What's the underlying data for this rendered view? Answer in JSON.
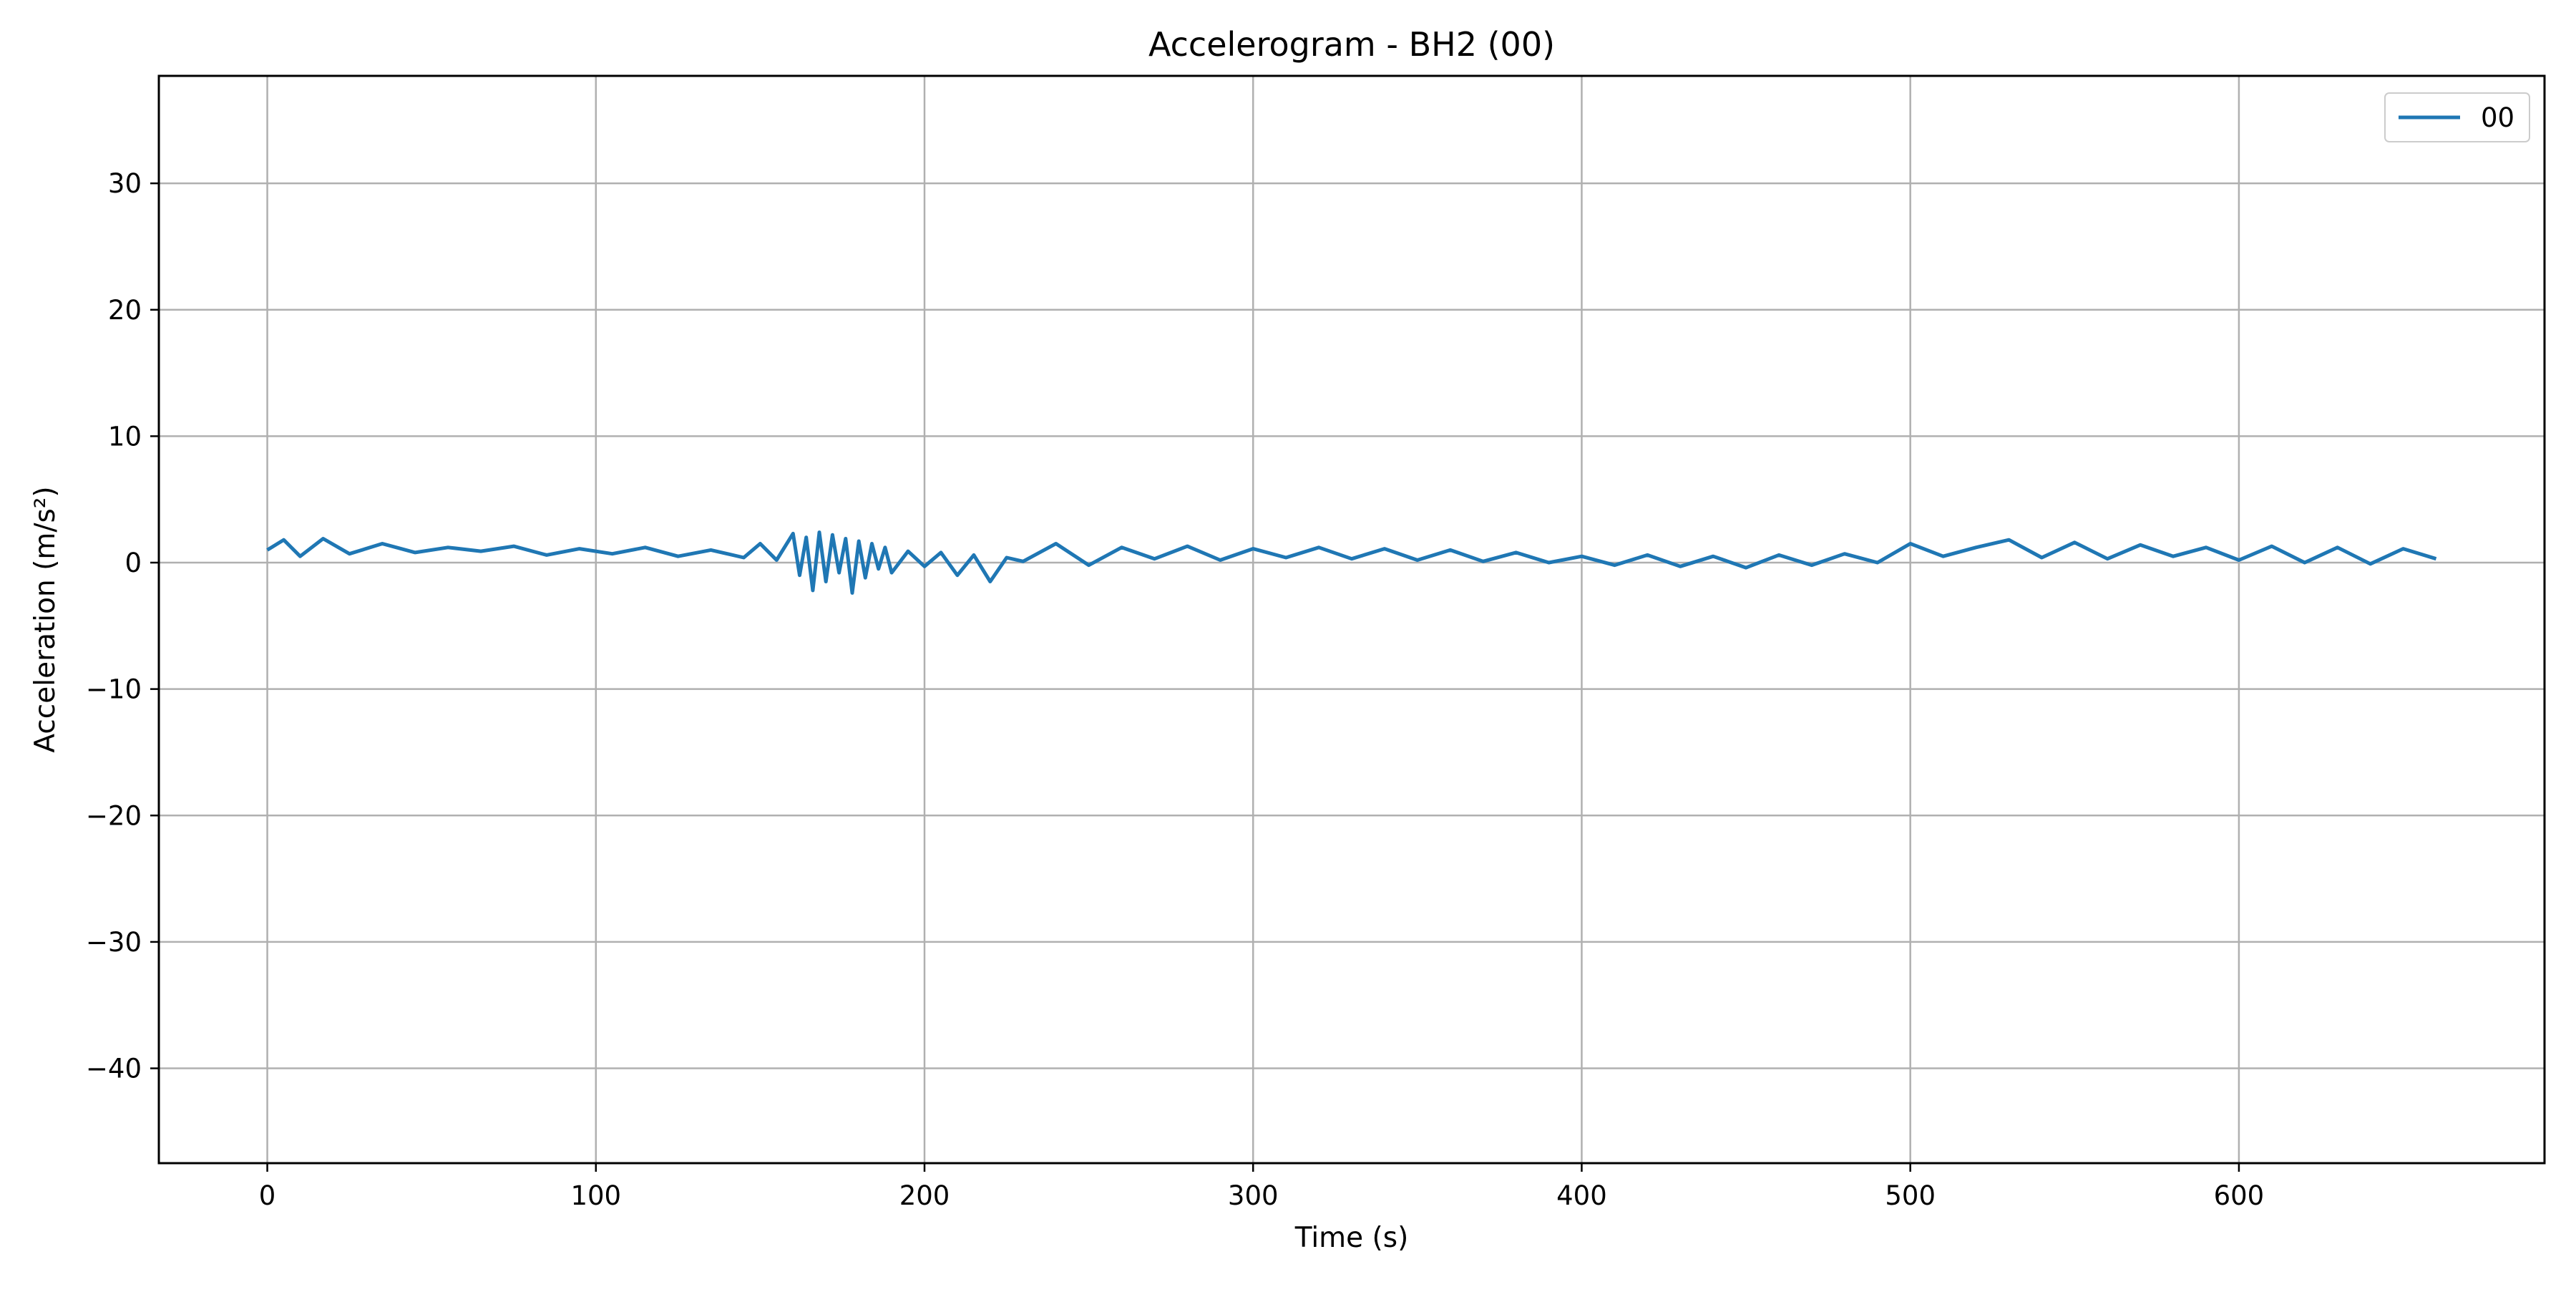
{
  "chart_data": {
    "type": "line",
    "title": "Accelerogram - BH2 (00)",
    "xlabel": "Time (s)",
    "ylabel": "Acceleration (m/s²)",
    "xlim": [
      -33,
      693
    ],
    "ylim": [
      -47.5,
      38.5
    ],
    "xticks": [
      0,
      100,
      200,
      300,
      400,
      500,
      600
    ],
    "yticks": [
      -40,
      -30,
      -20,
      -10,
      0,
      10,
      20,
      30
    ],
    "grid": true,
    "legend_position": "top-right",
    "colors": {
      "series": "#1f77b4",
      "grid": "#b0b0b0",
      "frame": "#000000"
    },
    "series": [
      {
        "name": "00",
        "x": [
          0,
          5,
          10,
          17,
          25,
          35,
          45,
          55,
          65,
          75,
          85,
          95,
          105,
          115,
          125,
          135,
          145,
          150,
          155,
          160,
          162,
          164,
          166,
          168,
          170,
          172,
          174,
          176,
          178,
          180,
          182,
          184,
          186,
          188,
          190,
          195,
          200,
          205,
          210,
          215,
          220,
          225,
          230,
          240,
          250,
          260,
          270,
          280,
          290,
          300,
          310,
          320,
          330,
          340,
          350,
          360,
          370,
          380,
          390,
          400,
          410,
          420,
          430,
          440,
          450,
          460,
          470,
          480,
          490,
          500,
          510,
          520,
          530,
          540,
          550,
          560,
          570,
          580,
          590,
          600,
          610,
          620,
          630,
          640,
          650,
          660
        ],
        "y": [
          1.0,
          1.8,
          0.5,
          1.9,
          0.7,
          1.5,
          0.8,
          1.2,
          0.9,
          1.3,
          0.6,
          1.1,
          0.7,
          1.2,
          0.5,
          1.0,
          0.4,
          1.5,
          0.2,
          2.3,
          -1.0,
          2.0,
          -2.2,
          2.4,
          -1.5,
          2.2,
          -0.8,
          1.9,
          -2.4,
          1.7,
          -1.2,
          1.5,
          -0.5,
          1.2,
          -0.8,
          0.9,
          -0.3,
          0.8,
          -1.0,
          0.6,
          -1.5,
          0.4,
          0.1,
          1.5,
          -0.2,
          1.2,
          0.3,
          1.3,
          0.2,
          1.1,
          0.4,
          1.2,
          0.3,
          1.1,
          0.2,
          1.0,
          0.1,
          0.8,
          0.0,
          0.5,
          -0.2,
          0.6,
          -0.3,
          0.5,
          -0.4,
          0.6,
          -0.2,
          0.7,
          0.0,
          1.5,
          0.5,
          1.2,
          1.8,
          0.4,
          1.6,
          0.3,
          1.4,
          0.5,
          1.2,
          0.2,
          1.3,
          0.0,
          1.2,
          -0.1,
          1.1,
          0.3
        ]
      }
    ]
  }
}
